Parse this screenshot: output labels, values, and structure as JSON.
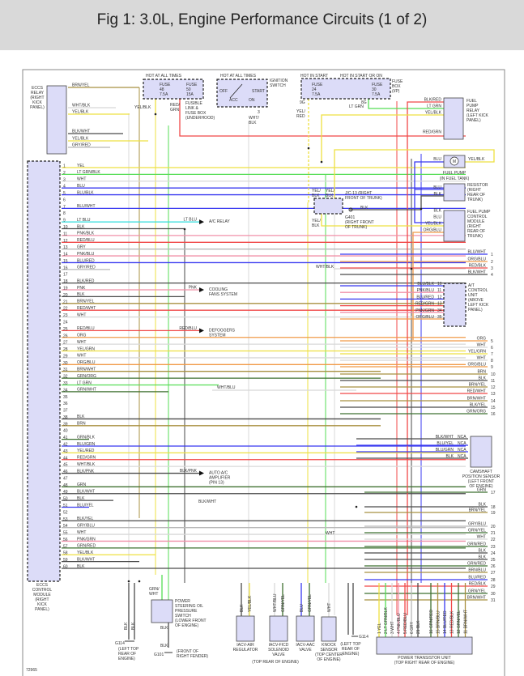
{
  "header": {
    "title": "Fig 1: 3.0L, Engine Performance Circuits (1 of 2)"
  },
  "figure_number": "72965",
  "wire_colors": {
    "YEL": "#eee040",
    "LT GRN": "#55dd55",
    "WHT": "#d8d8d8",
    "BLU": "#3838f0",
    "BLK": "#4a4a4a",
    "LT BLU": "#30dede",
    "PNK": "#f090a8",
    "RED": "#f04848",
    "GRY": "#b8b8b8",
    "BRN": "#a89040",
    "ORG": "#f09a48",
    "GRN": "#3f7030"
  },
  "eccs_relay": {
    "label": [
      "ECCS",
      "RELAY",
      "(RIGHT",
      "KICK",
      "PANEL)"
    ],
    "wires": [
      "BRN/YEL",
      "WHT/BLK",
      "YEL/BLK",
      "BLK/WHT",
      "YEL/BLK",
      "GRY/RED"
    ]
  },
  "ecm": {
    "label": [
      "ECCS",
      "CONTROL",
      "MODULE",
      "(RIGHT",
      "KICK",
      "PANEL)"
    ],
    "pins": [
      {
        "pin": 1,
        "wire": "YEL"
      },
      {
        "pin": 2,
        "wire": "LT GRN/BLK"
      },
      {
        "pin": 3,
        "wire": "WHT"
      },
      {
        "pin": 4,
        "wire": "BLU"
      },
      {
        "pin": 5,
        "wire": "BLU/BLK"
      },
      {
        "pin": 6,
        "wire": ""
      },
      {
        "pin": 7,
        "wire": "BLU/WHT"
      },
      {
        "pin": 8,
        "wire": ""
      },
      {
        "pin": 9,
        "wire": "LT BLU"
      },
      {
        "pin": 10,
        "wire": "BLK"
      },
      {
        "pin": 11,
        "wire": "PNK/BLK"
      },
      {
        "pin": 12,
        "wire": "RED/BLU"
      },
      {
        "pin": 13,
        "wire": "GRY"
      },
      {
        "pin": 14,
        "wire": "PNK/BLU"
      },
      {
        "pin": 15,
        "wire": "BLU/RED"
      },
      {
        "pin": 16,
        "wire": "GRY/RED"
      },
      {
        "pin": 17,
        "wire": ""
      },
      {
        "pin": 18,
        "wire": "BLK/RED"
      },
      {
        "pin": 19,
        "wire": "PNK"
      },
      {
        "pin": 20,
        "wire": "BLK"
      },
      {
        "pin": 21,
        "wire": "BRN/YEL"
      },
      {
        "pin": 22,
        "wire": "RED/WHT"
      },
      {
        "pin": 23,
        "wire": "WHT"
      },
      {
        "pin": 24,
        "wire": ""
      },
      {
        "pin": 25,
        "wire": "RED/BLU"
      },
      {
        "pin": 26,
        "wire": "ORG"
      },
      {
        "pin": 27,
        "wire": "WHT"
      },
      {
        "pin": 28,
        "wire": "YEL/GRN"
      },
      {
        "pin": 29,
        "wire": "WHT"
      },
      {
        "pin": 30,
        "wire": "ORG/BLU"
      },
      {
        "pin": 31,
        "wire": "BRN/WHT"
      },
      {
        "pin": 32,
        "wire": "GRN/ORG"
      },
      {
        "pin": 33,
        "wire": "LT GRN"
      },
      {
        "pin": 34,
        "wire": "GRN/WHT"
      },
      {
        "pin": 35,
        "wire": ""
      },
      {
        "pin": 36,
        "wire": ""
      },
      {
        "pin": 37,
        "wire": ""
      },
      {
        "pin": 38,
        "wire": "BLK"
      },
      {
        "pin": 39,
        "wire": "BRN"
      },
      {
        "pin": 40,
        "wire": ""
      },
      {
        "pin": 41,
        "wire": "GRN/BLK"
      },
      {
        "pin": 42,
        "wire": "BLU/GRN"
      },
      {
        "pin": 43,
        "wire": "YEL/RED"
      },
      {
        "pin": 44,
        "wire": "RED/GRN"
      },
      {
        "pin": 45,
        "wire": "WHT/BLK"
      },
      {
        "pin": 46,
        "wire": "BLK/PNK"
      },
      {
        "pin": 47,
        "wire": ""
      },
      {
        "pin": 48,
        "wire": "GRN"
      },
      {
        "pin": 49,
        "wire": "BLK/WHT"
      },
      {
        "pin": 50,
        "wire": "BLK"
      },
      {
        "pin": 51,
        "wire": "BLU/YEL"
      },
      {
        "pin": 52,
        "wire": ""
      },
      {
        "pin": 53,
        "wire": "BLK/YEL"
      },
      {
        "pin": 54,
        "wire": "GRY/BLU"
      },
      {
        "pin": 55,
        "wire": "WHT"
      },
      {
        "pin": 56,
        "wire": "PNK/GRN"
      },
      {
        "pin": 57,
        "wire": "GRN/RED"
      },
      {
        "pin": 58,
        "wire": "YEL/BLK"
      },
      {
        "pin": 59,
        "wire": "BLK/WHT"
      },
      {
        "pin": 60,
        "wire": "BLK"
      }
    ]
  },
  "callouts": [
    {
      "pin": 9,
      "wire": "LT BLU",
      "target": [
        "A/C RELAY"
      ]
    },
    {
      "pin": 19,
      "wire": "PNK",
      "target": [
        "COOLING",
        "FANS SYSTEM"
      ]
    },
    {
      "pin": 25,
      "wire": "RED/BLU",
      "target": [
        "DEFOGGERS",
        "SYSTEM"
      ]
    },
    {
      "pin": 46,
      "wire": "BLK/PNK",
      "target": [
        "AUTO A/C",
        "AMPLIFIER",
        "(PIN 13)"
      ]
    }
  ],
  "misc_labels": {
    "wht_blu": "WHT/BLU",
    "blk_wht_49": "BLK/WHT",
    "wht_blk_conn": "WHT/BLK",
    "wht_vertical": "WHT"
  },
  "fuse_underhood": {
    "hot": "HOT AT ALL TIMES",
    "fuses": [
      [
        "FUSE",
        "48",
        "7.5A"
      ],
      [
        "FUSE",
        "50",
        "15A"
      ]
    ],
    "label": [
      "FUSIBLE",
      "LINK &",
      "FUSE BOX",
      "(UNDERHOOD)"
    ],
    "wires": [
      "YEL/BLK",
      "RED/",
      "GRN"
    ]
  },
  "ignition": {
    "hot": "HOT AT ALL TIMES",
    "label": [
      "IGNITION",
      "SWITCH"
    ],
    "positions": [
      "OFF",
      "ACC",
      "START",
      "ON"
    ],
    "pin": "3",
    "wire": [
      "WHT/",
      "BLK"
    ]
  },
  "fuse_ip": {
    "hot": [
      "HOT IN START",
      "HOT IN START OR ON"
    ],
    "fuses": [
      [
        "FUSE",
        "24",
        "7.5A"
      ],
      [
        "FUSE",
        "30",
        "7.5A"
      ]
    ],
    "label": [
      "FUSE",
      "BOX",
      "(I/P)"
    ],
    "pins": [
      "9G",
      "8G"
    ],
    "wires": [
      [
        "YEL/",
        "RED"
      ],
      [
        "LT GRN"
      ]
    ]
  },
  "fuel_pump_relay": {
    "label": [
      "FUEL",
      "PUMP",
      "RELAY",
      "(LEFT KICK",
      "PANEL)"
    ],
    "wires": [
      "BLK/RED",
      "LT GRN",
      "YEL/BLK",
      "RED/GRN"
    ]
  },
  "fuel_pump": {
    "label": [
      "FUEL PUMP",
      "(IN FUEL TANK)"
    ],
    "motor": "M",
    "wires": [
      "BLU",
      "YEL/BLK"
    ]
  },
  "resistor": {
    "label": [
      "RESISTOR",
      "(RIGHT",
      "REAR OF",
      "TRUNK)"
    ],
    "wires": [
      "BLU",
      "BLK"
    ]
  },
  "fp_control": {
    "label": [
      "FUEL PUMP",
      "CONTROL",
      "MODULE",
      "(RIGHT",
      "REAR OF",
      "TRUNK)"
    ],
    "wires": [
      "BLK",
      "BLU",
      "YEL/BLK",
      "ORG/BLU"
    ]
  },
  "jc13": {
    "label": [
      "J/C-13   (RIGHT",
      "FRONT OF TRUNK)"
    ],
    "wires": [
      [
        "YEL/",
        "BLK"
      ],
      [
        "YEL/",
        "BLK"
      ],
      [
        "YEL/",
        "BLK"
      ]
    ],
    "ground": [
      "G401",
      "(RIGHT FRONT",
      "OF TRUNK)"
    ],
    "ground_wire": "BLK"
  },
  "at_control": {
    "label": [
      "A/T",
      "CONTROL",
      "UNIT",
      "(ABOVE",
      "LEFT KICK",
      "PANEL)"
    ],
    "pins": [
      {
        "pin": "10",
        "wire": "BLU/BLK"
      },
      {
        "pin": "11",
        "wire": "PNK/BLU"
      },
      {
        "pin": "12",
        "wire": "BLU/RED"
      },
      {
        "pin": "13",
        "wire": "RED/GRN"
      },
      {
        "pin": "34",
        "wire": "PNK/GRN"
      },
      {
        "pin": "35",
        "wire": "ORG/BLU"
      }
    ]
  },
  "camshaft": {
    "label": [
      "CAMSHAFT",
      "POSITION SENSOR",
      "(LEFT FRONT",
      "OF ENGINE)"
    ],
    "pins": [
      {
        "pin": "NCA",
        "wire": "BLK/WHT"
      },
      {
        "pin": "NCA",
        "wire": "BLU/YEL"
      },
      {
        "pin": "NCA",
        "wire": "BLU/GRN"
      },
      {
        "pin": "NCA",
        "wire": "BLK"
      }
    ]
  },
  "terminals": [
    {
      "n": "1",
      "wire": "BLU/WHT"
    },
    {
      "n": "2",
      "wire": "ORG/BLU"
    },
    {
      "n": "3",
      "wire": "RED/BLK"
    },
    {
      "n": "4",
      "wire": "BLK/WHT"
    },
    {
      "n": "5",
      "wire": "ORG"
    },
    {
      "n": "6",
      "wire": "WHT"
    },
    {
      "n": "7",
      "wire": "YEL/GRN"
    },
    {
      "n": "8",
      "wire": "WHT"
    },
    {
      "n": "9",
      "wire": "ORG/BLU"
    },
    {
      "n": "10",
      "wire": "BRN"
    },
    {
      "n": "11",
      "wire": "BLK"
    },
    {
      "n": "12",
      "wire": "BRN/YEL"
    },
    {
      "n": "13",
      "wire": "RED/WHT"
    },
    {
      "n": "14",
      "wire": "BRN/WHT"
    },
    {
      "n": "15",
      "wire": "BLK/YEL"
    },
    {
      "n": "16",
      "wire": "GRN/ORG"
    },
    {
      "n": "17",
      "wire": "GRN"
    },
    {
      "n": "18",
      "wire": "BLK"
    },
    {
      "n": "19",
      "wire": "BRN/YEL"
    },
    {
      "n": "20",
      "wire": "GRY/BLU"
    },
    {
      "n": "21",
      "wire": "GRN/YEL"
    },
    {
      "n": "22",
      "wire": "WHT"
    },
    {
      "n": "23",
      "wire": "GRN/RED"
    },
    {
      "n": "24",
      "wire": "BLK"
    },
    {
      "n": "25",
      "wire": "BLK"
    },
    {
      "n": "26",
      "wire": "GRN/RED"
    },
    {
      "n": "27",
      "wire": "BRN/BLU"
    },
    {
      "n": "28",
      "wire": "BLU/RED"
    },
    {
      "n": "29",
      "wire": "RED/BLK"
    },
    {
      "n": "30",
      "wire": "GRN/YEL"
    },
    {
      "n": "31",
      "wire": "BRN/WHT"
    }
  ],
  "ps_switch": {
    "label": [
      "POWER",
      "STEERING OIL",
      "PRESSURE",
      "SWITCH",
      "(LOWER FRONT",
      "OF ENGINE)"
    ],
    "wire_in": [
      "GRN/",
      "WHT"
    ],
    "wire_out": "BLK",
    "ground_wire": "BLK",
    "ground": "G101",
    "ground_loc": [
      "(FRONT OF",
      "RIGHT FENDER)"
    ]
  },
  "g114_left": {
    "name": "G114",
    "loc": [
      "(LEFT TOP",
      "REAR OF",
      "ENGINE)"
    ],
    "wires": [
      "BLK",
      "BLK"
    ]
  },
  "g114_right": {
    "name": "G114",
    "loc": [
      "(LEFT TOP",
      "REAR OF",
      "ENGINE)"
    ],
    "wires": [
      "BLK",
      "BLK"
    ]
  },
  "iacv": [
    {
      "name": [
        "IACV-AIR",
        "REGULATOR"
      ],
      "wires": [
        "BLK",
        "YEL/BLK"
      ]
    },
    {
      "name": [
        "IACV-FICD",
        "SOLENOID",
        "VALVE"
      ],
      "wires": [
        "WHT/BLU",
        "GRN/YEL"
      ]
    },
    {
      "name": [
        "IACV-AAC",
        "VALVE"
      ],
      "wires": [
        "BLU",
        "GRN/YEL"
      ]
    }
  ],
  "iacv_group": "(TOP REAR OF ENGINE)",
  "knock": {
    "name": [
      "KNOCK",
      "SENSOR",
      "(TOP CENTER",
      "OF ENGINE)"
    ],
    "wire": "WHT"
  },
  "ptu": {
    "name": [
      "POWER TRANSISTOR UNIT",
      "(TOP RIGHT REAR OF ENGINE)"
    ],
    "pins": [
      {
        "n": "1",
        "wire": "YEL"
      },
      {
        "n": "2",
        "wire": "LT GRN/BLK"
      },
      {
        "n": "3",
        "wire": "WHT"
      },
      {
        "n": "4",
        "wire": "PNK/BLU"
      },
      {
        "n": "5",
        "wire": "RED/BLU"
      },
      {
        "n": "6",
        "wire": "GRY"
      },
      {
        "n": "21",
        "wire": "BLK"
      },
      {
        "n": "16",
        "wire": "GRN/RED"
      },
      {
        "n": "15",
        "wire": "BRN/BLU"
      },
      {
        "n": "14",
        "wire": "BLU/RED"
      },
      {
        "n": "13",
        "wire": "RED/BLK"
      },
      {
        "n": "12",
        "wire": "GRN/YEL"
      },
      {
        "n": "11",
        "wire": "BRN/WHT"
      }
    ]
  }
}
